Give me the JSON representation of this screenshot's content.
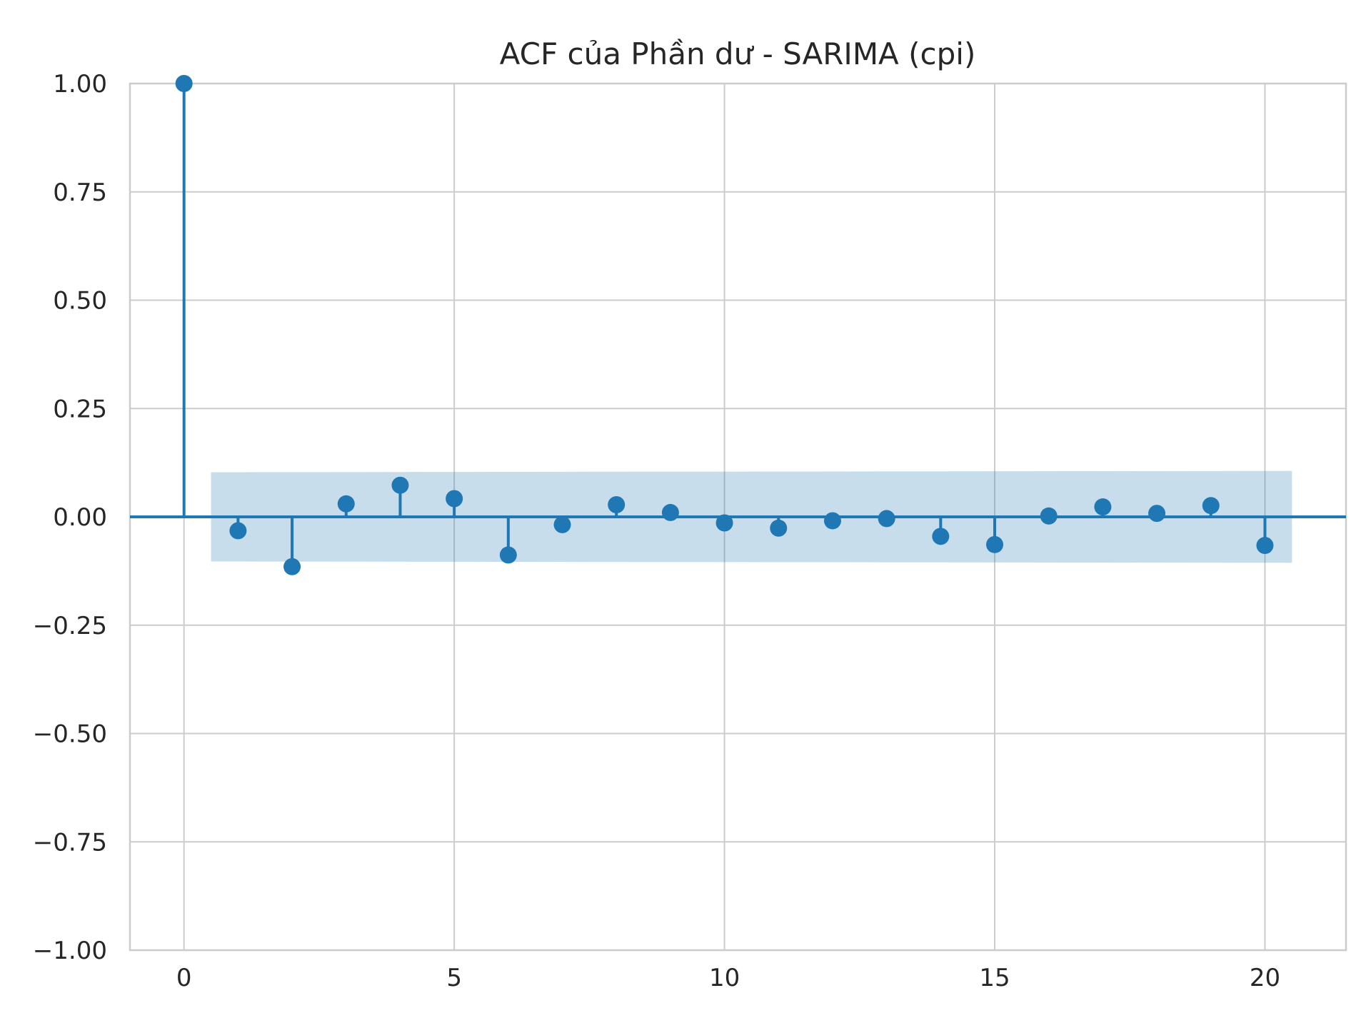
{
  "chart_data": {
    "type": "stem",
    "title": "ACF của Phần dư - SARIMA (cpi)",
    "xlabel": "",
    "ylabel": "",
    "xlim": [
      -1,
      21.5
    ],
    "ylim": [
      -1.0,
      1.0
    ],
    "x_ticks": [
      0,
      5,
      10,
      15,
      20
    ],
    "x_tick_labels": [
      "0",
      "5",
      "10",
      "15",
      "20"
    ],
    "y_ticks": [
      1.0,
      0.75,
      0.5,
      0.25,
      0.0,
      -0.25,
      -0.5,
      -0.75,
      -1.0
    ],
    "y_tick_labels": [
      "1.00",
      "0.75",
      "0.50",
      "0.25",
      "0.00",
      "−0.25",
      "−0.50",
      "−0.75",
      "−1.00"
    ],
    "grid": true,
    "lags": [
      0,
      1,
      2,
      3,
      4,
      5,
      6,
      7,
      8,
      9,
      10,
      11,
      12,
      13,
      14,
      15,
      16,
      17,
      18,
      19,
      20
    ],
    "values": [
      1.0,
      -0.032,
      -0.115,
      0.03,
      0.073,
      0.042,
      -0.088,
      -0.018,
      0.028,
      0.01,
      -0.014,
      -0.026,
      -0.009,
      -0.004,
      -0.045,
      -0.064,
      0.002,
      0.023,
      0.008,
      0.026,
      -0.066
    ],
    "confidence_band": {
      "x": [
        0.5,
        20.5
      ],
      "upper": [
        0.103,
        0.106
      ],
      "lower": [
        -0.103,
        -0.106
      ]
    },
    "colors": {
      "series": "#1f77b4",
      "band": "#1f77b4",
      "grid": "#cccccc",
      "axes_edge": "#cccccc",
      "text": "#262626"
    }
  }
}
